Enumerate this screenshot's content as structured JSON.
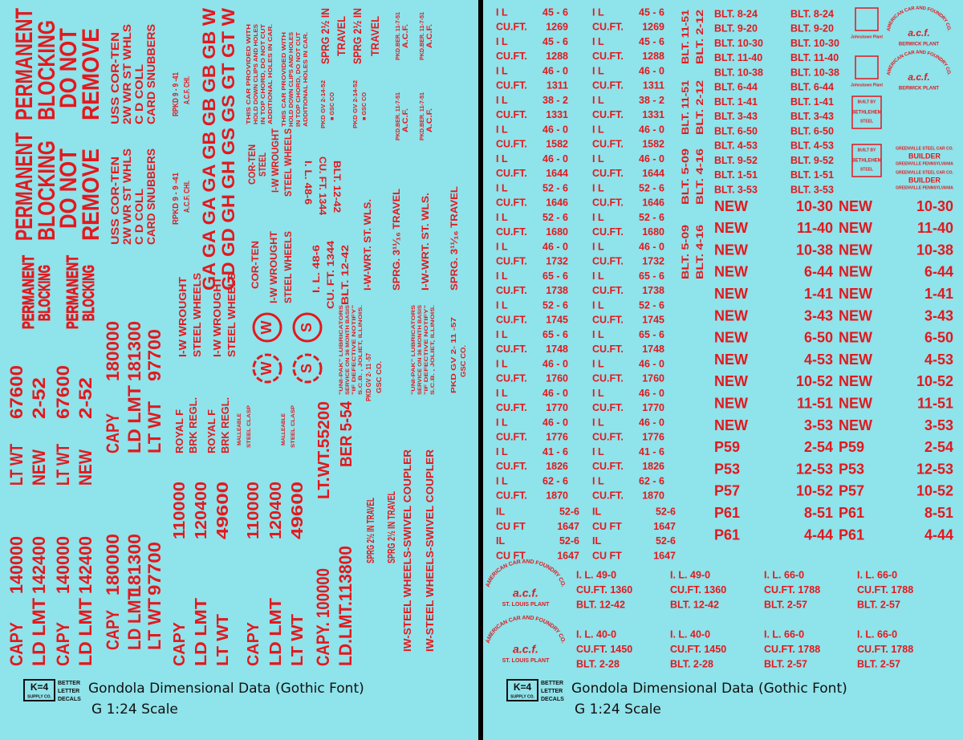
{
  "left_sheet": {
    "items": [
      "PERMANENT",
      "BLOCKING",
      "DO NOT",
      "REMOVE",
      "PERMANENT",
      "BLOCKING",
      "DO NOT",
      "REMOVE",
      "PERMANENT",
      "BLOCKING",
      "PERMANENT",
      "BLOCKING",
      "USS COR-TEN",
      "2W WR ST WHLS",
      "C D COLL",
      "CARD SNUBBERS",
      "USS COR-TEN",
      "2W WR ST WHLS",
      "C D COLL",
      "CARD SNUBBERS",
      "RPKD 9 - 9 -41",
      "A.C.F. CHI.",
      "RPKD 9 - 9 -41",
      "A.C.F. CHI.",
      "GA GA GA GA GB GB GB GB W",
      "GD GD GH GH GS GS GT GT W",
      "COR-TEN",
      "STEEL",
      "I-W WROUGHT",
      "STEEL WHEELS",
      "COR-TEN",
      "I-W WROUGHT",
      "STEEL WHEELS",
      "THIS CAR PROVIDED WITH",
      "HOLD DOWN CLIPS AND HOLES",
      "IN TOP CHORD, DO NOT CUT",
      "ADDITIONAL HOLES IN CAR.",
      "THIS CAR PROVIDED WITH",
      "HOLD DOWN CLIPS AND HOLES",
      "IN TOP CHORD, DO NOT CUT",
      "ADDITIONAL HOLES IN CAR.",
      "PKD GV 2-14-52",
      "■ GSC CO",
      "PKD GV 2-14-52",
      "■ GSC CO",
      "SPRG 2½ IN",
      "TRAVEL",
      "SPRG 2½ IN",
      "TRAVEL",
      "PKD.BER. 11-7-51",
      "A.C.F.",
      "PKD.BER. 11-7-51",
      "A.C.F.",
      "PKD.BER. 11-7-51",
      "A.C.F.",
      "PKD.BER. 11-7-51",
      "A.C.F.",
      "I. L. 48-6",
      "CU. FT. 1344",
      "BLT. 12-42",
      "I. L. 48-6",
      "CU. FT. 1344",
      "BLT. 12-42",
      "I-W-WRT. ST. WLS.",
      "SPRG. 3¹¹⁄₁₆ TRAVEL",
      "I-W-WRT. ST. WLS.",
      "SPRG. 3¹¹⁄₁₆ TRAVEL",
      "CAPY",
      "140000",
      "LT WT",
      "67600",
      "LD LMT",
      "142400",
      "NEW",
      "2-52",
      "CAPY",
      "140000",
      "LT WT",
      "67600",
      "LD LMT",
      "142400",
      "NEW",
      "2-52",
      "CAPY",
      "180000",
      "CAPY",
      "180000",
      "LD LMT",
      "181300",
      "LD LMT",
      "181300",
      "LT WT",
      "97700",
      "LT WT",
      "97700",
      "CAPY",
      "110000",
      "LD LMT",
      "120400",
      "LT WT",
      "49600",
      "ROYAL F",
      "BRK REGL.",
      "ROYAL F",
      "BRK REGL.",
      "I-W WROUGHT",
      "STEEL WHEELS",
      "I-W WROUGHT",
      "STEEL WHEELS",
      "CAPY",
      "110000",
      "LD LMT",
      "120400",
      "LT WT",
      "49600",
      "MALLEABLE",
      "STEEL CLASP",
      "MALLEABLE",
      "STEEL CLASP",
      "CAPY. 100000",
      "LD.LMT.113800",
      "LT.WT.55200",
      "BER 5-54",
      "\"UNI-PAK\" LUBRICATORS",
      "SERVICE ON 36 MONTH BASIS",
      "\"IF DEFECTIVE NOTIFY\"",
      "S.C.B. , JOLIET, ILLINOIS.",
      "\"UNI-PAK\" LUBRICATORS",
      "SERVICE ON 36 MONTH BASIS",
      "\"IF DEFECTIVE NOTIFY\"",
      "S.C.B. , JOLIET, ILLINOIS.",
      "PKD GV 2- 11 -57",
      "GSC CO.",
      "PKD GV 2- 11 -57",
      "GSC CO.",
      "SPRG 2½ IN TRAVEL",
      "SPRG 2½ IN TRAVEL",
      "IW-STEEL WHEELS-SWIVEL COUPLER",
      "IW-STEEL WHEELS-SWIVEL COUPLER"
    ],
    "circles": [
      "W",
      "S",
      "W",
      "S"
    ]
  },
  "right_sheet": {
    "il_label": "I L",
    "cuft_label": "CU.FT.",
    "dims": [
      [
        "45 - 6",
        "1269"
      ],
      [
        "45 - 6",
        "1288"
      ],
      [
        "46 - 0",
        "1311"
      ],
      [
        "38 - 2",
        "1331"
      ],
      [
        "46 - 0",
        "1582"
      ],
      [
        "46 - 0",
        "1644"
      ],
      [
        "52 - 6",
        "1646"
      ],
      [
        "52 - 6",
        "1680"
      ],
      [
        "46 - 0",
        "1732"
      ],
      [
        "65 - 6",
        "1738"
      ],
      [
        "52 - 6",
        "1745"
      ],
      [
        "65 - 6",
        "1748"
      ],
      [
        "46 - 0",
        "1760"
      ],
      [
        "46 - 0",
        "1770"
      ],
      [
        "46 - 0",
        "1776"
      ],
      [
        "41 - 6",
        "1826"
      ],
      [
        "62 - 6",
        "1870"
      ]
    ],
    "il_label_2": "IL",
    "cuft_label_2": "CU FT",
    "dims_2": [
      "52-6",
      "1647"
    ],
    "vertical_blt": [
      "BLT. 11-51",
      "BLT. 2-12",
      "BLT. 5-09",
      "BLT. 4-16"
    ],
    "blt": [
      "BLT. 8-24",
      "BLT. 9-20",
      "BLT. 10-30",
      "BLT. 11-40",
      "BLT. 10-38",
      "BLT. 6-44",
      "BLT. 1-41",
      "BLT. 3-43",
      "BLT. 6-50",
      "BLT. 4-53",
      "BLT. 9-52",
      "BLT. 1-51",
      "BLT. 3-53"
    ],
    "new_label": "NEW",
    "new_dates": [
      "10-30",
      "11-40",
      "10-38",
      "6-44",
      "1-41",
      "3-43",
      "6-50",
      "4-53",
      "10-52",
      "11-51",
      "3-53"
    ],
    "p_rows": [
      [
        "P59",
        "2-54"
      ],
      [
        "P53",
        "12-53"
      ],
      [
        "P57",
        "10-52"
      ],
      [
        "P61",
        "8-51"
      ],
      [
        "P61",
        "4-44"
      ]
    ],
    "stencils": [
      [
        "I. L.  49-0",
        "CU.FT. 1360",
        "BLT.   12-42"
      ],
      [
        "I. L.  40-0",
        "CU.FT. 1450",
        "BLT.   2-28"
      ],
      [
        "I. L. 66-0",
        "CU.FT. 1788",
        "BLT.  2-57"
      ]
    ],
    "acf": {
      "name": "AMERICAN CAR AND FOUNDRY CO.",
      "mark": "a.c.f.",
      "plant": "ST. LOUIS PLANT",
      "plant2": "BERWICK PLANT"
    },
    "bethlehem": {
      "built_by": "BUILT BY",
      "name": "BETHLEHEM",
      "steel": "STEEL"
    },
    "greenville": {
      "name": "GREENVILLE STEEL CAR CO.",
      "builder": "BUILDER",
      "place": "GREENVILLE PENNSYLVANIA"
    },
    "johnstown": "Johnstown Plant"
  },
  "brand": {
    "logo": "K=4",
    "logo_sub": "SUPPLY CO.",
    "tagline": [
      "BETTER",
      "LETTER",
      "DECALS"
    ]
  },
  "caption": {
    "title": "Gondola Dimensional Data (Gothic Font)",
    "scale": "G 1:24 Scale"
  }
}
